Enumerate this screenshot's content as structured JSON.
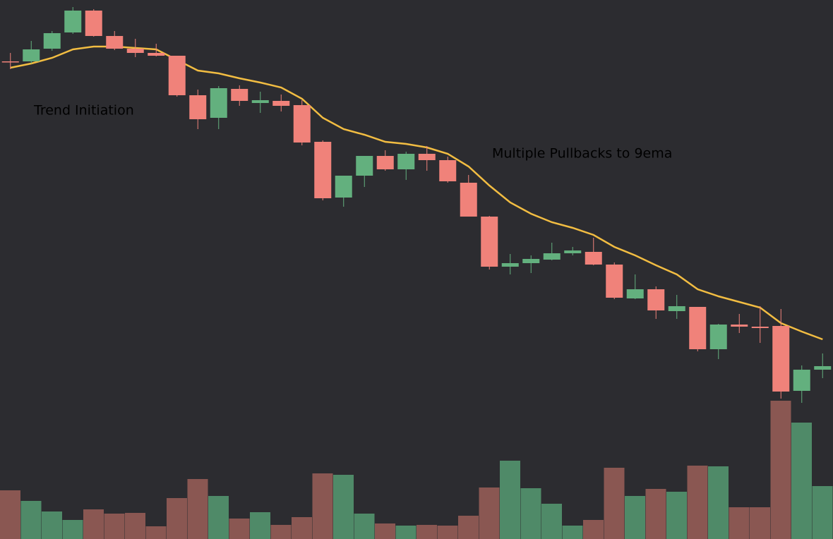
{
  "chart_data": {
    "type": "candlestick",
    "annotations": [
      "Trend Initiation",
      "Multiple Pullbacks to 9ema"
    ],
    "open": [
      713,
      713,
      731,
      754,
      785,
      749,
      731,
      725,
      721,
      665,
      633,
      674,
      654,
      657,
      651,
      599,
      520,
      551,
      579,
      560,
      582,
      573,
      541,
      493,
      422,
      427,
      432,
      441,
      443,
      425,
      377,
      390,
      359,
      365,
      305,
      340,
      337,
      338,
      246,
      276
    ],
    "high": [
      725,
      742,
      756,
      790,
      787,
      756,
      745,
      738,
      721,
      673,
      678,
      679,
      670,
      666,
      658,
      601,
      551,
      579,
      587,
      585,
      593,
      578,
      552,
      494,
      440,
      438,
      456,
      450,
      463,
      428,
      411,
      394,
      382,
      365,
      341,
      355,
      366,
      362,
      282,
      299
    ],
    "low": [
      702,
      710,
      728,
      752,
      748,
      729,
      719,
      720,
      663,
      617,
      617,
      650,
      640,
      642,
      594,
      516,
      507,
      535,
      558,
      545,
      558,
      541,
      493,
      418,
      411,
      413,
      431,
      438,
      424,
      376,
      376,
      348,
      348,
      302,
      291,
      328,
      314,
      235,
      229,
      264
    ],
    "close": [
      712,
      730,
      753,
      785,
      749,
      731,
      725,
      721,
      665,
      631,
      675,
      657,
      658,
      650,
      598,
      519,
      551,
      579,
      560,
      582,
      573,
      543,
      493,
      422,
      427,
      433,
      441,
      445,
      425,
      378,
      390,
      360,
      366,
      305,
      340,
      337,
      335,
      245,
      276,
      281
    ],
    "up_color": "#63b07e",
    "down_color": "#f0827a",
    "ylim": [
      36,
      800
    ],
    "ema": {
      "values": [
        704,
        710,
        718,
        730,
        734,
        734,
        732,
        730,
        715,
        700,
        696,
        689,
        683,
        676,
        660,
        633,
        617,
        609,
        599,
        596,
        591,
        582,
        564,
        537,
        513,
        497,
        485,
        477,
        467,
        450,
        438,
        424,
        411,
        390,
        380,
        372,
        364,
        342,
        330,
        319
      ],
      "color": "#f2bd42"
    },
    "volume": {
      "values": [
        69,
        54,
        39,
        27,
        42,
        36,
        37,
        18,
        58,
        85,
        61,
        29,
        38,
        20,
        31,
        93,
        91,
        36,
        22,
        19,
        20,
        19,
        33,
        73,
        111,
        72,
        50,
        19,
        27,
        101,
        61,
        71,
        67,
        104,
        103,
        45,
        45,
        196,
        165,
        75
      ],
      "up_color": "#4f8a68",
      "down_color": "#8a5752",
      "ylim": [
        0,
        764
      ]
    }
  }
}
